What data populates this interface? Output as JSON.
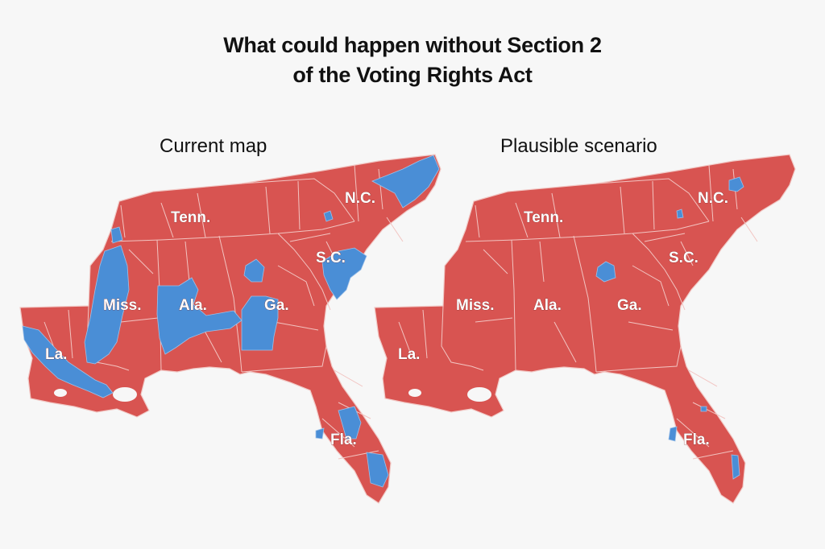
{
  "title": {
    "line1": "What could happen without Section 2",
    "line2": "of the Voting Rights Act"
  },
  "maps": [
    {
      "subtitle": "Current map",
      "labels": [
        "Tenn.",
        "N.C.",
        "S.C.",
        "Miss.",
        "Ala.",
        "Ga.",
        "La.",
        "Fla."
      ]
    },
    {
      "subtitle": "Plausible scenario",
      "labels": [
        "Tenn.",
        "N.C.",
        "S.C.",
        "Miss.",
        "Ala.",
        "Ga.",
        "La.",
        "Fla."
      ]
    }
  ],
  "colors": {
    "republican": "#d85451",
    "democratic": "#4a8ed6",
    "boundary": "#f1c9c6",
    "background": "#f7f7f7"
  }
}
